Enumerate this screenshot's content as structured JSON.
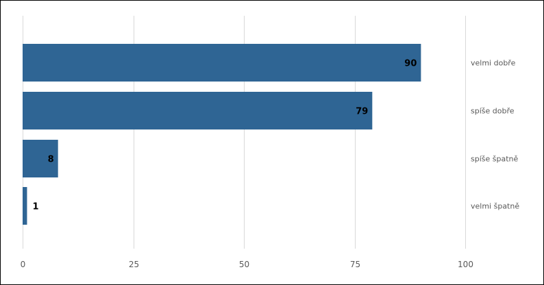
{
  "chart_data": {
    "type": "bar",
    "orientation": "horizontal",
    "categories": [
      "velmi dobře",
      "spíše dobře",
      "spíše špatně",
      "velmi špatně"
    ],
    "values": [
      90,
      79,
      8,
      1
    ],
    "data_labels": [
      "90",
      "79",
      "8",
      "1"
    ],
    "xlim": [
      0,
      100
    ],
    "x_ticks": [
      0,
      25,
      50,
      75,
      100
    ],
    "x_tick_labels": [
      "0",
      "25",
      "50",
      "75",
      "100"
    ],
    "grid": "vertical",
    "legend": "none",
    "bar_color": "#2f6594",
    "grid_color": "#d9d9d9",
    "label_color": "#595959",
    "title": "",
    "xlabel": "",
    "ylabel": ""
  }
}
